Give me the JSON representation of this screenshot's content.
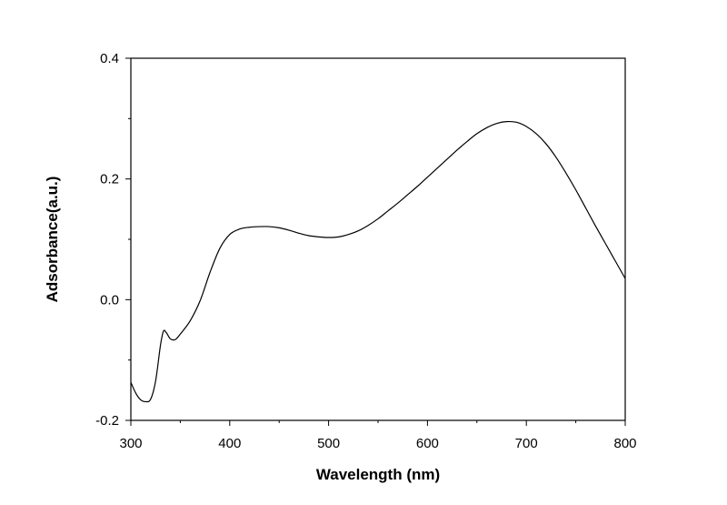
{
  "chart_data": {
    "type": "line",
    "xlabel": "Wavelength (nm)",
    "ylabel": "Adsorbance(a.u.)",
    "xlim": [
      300,
      800
    ],
    "ylim": [
      -0.2,
      0.4
    ],
    "x_ticks": [
      300,
      400,
      500,
      600,
      700,
      800
    ],
    "x_tick_labels": [
      "300",
      "400",
      "500",
      "600",
      "700",
      "800"
    ],
    "y_ticks": [
      -0.2,
      0.0,
      0.2,
      0.4
    ],
    "y_tick_labels": [
      "-0.2",
      "0.0",
      "0.2",
      "0.4"
    ],
    "grid": false,
    "series": [
      {
        "x": [
          300,
          305,
          310,
          315,
          320,
          325,
          330,
          333,
          336,
          340,
          345,
          350,
          360,
          370,
          380,
          390,
          400,
          410,
          420,
          430,
          440,
          450,
          460,
          470,
          480,
          490,
          500,
          510,
          520,
          530,
          540,
          550,
          560,
          570,
          580,
          590,
          600,
          610,
          620,
          630,
          640,
          650,
          660,
          670,
          680,
          690,
          700,
          710,
          720,
          730,
          740,
          750,
          760,
          770,
          780,
          790,
          800
        ],
        "y": [
          -0.137,
          -0.155,
          -0.166,
          -0.169,
          -0.165,
          -0.135,
          -0.075,
          -0.052,
          -0.055,
          -0.065,
          -0.066,
          -0.057,
          -0.035,
          -0.002,
          0.045,
          0.085,
          0.108,
          0.117,
          0.12,
          0.121,
          0.121,
          0.119,
          0.115,
          0.11,
          0.106,
          0.104,
          0.103,
          0.104,
          0.108,
          0.114,
          0.123,
          0.134,
          0.147,
          0.16,
          0.174,
          0.188,
          0.203,
          0.218,
          0.233,
          0.248,
          0.262,
          0.275,
          0.285,
          0.292,
          0.295,
          0.294,
          0.287,
          0.275,
          0.258,
          0.236,
          0.21,
          0.182,
          0.152,
          0.122,
          0.093,
          0.064,
          0.035
        ]
      }
    ]
  }
}
